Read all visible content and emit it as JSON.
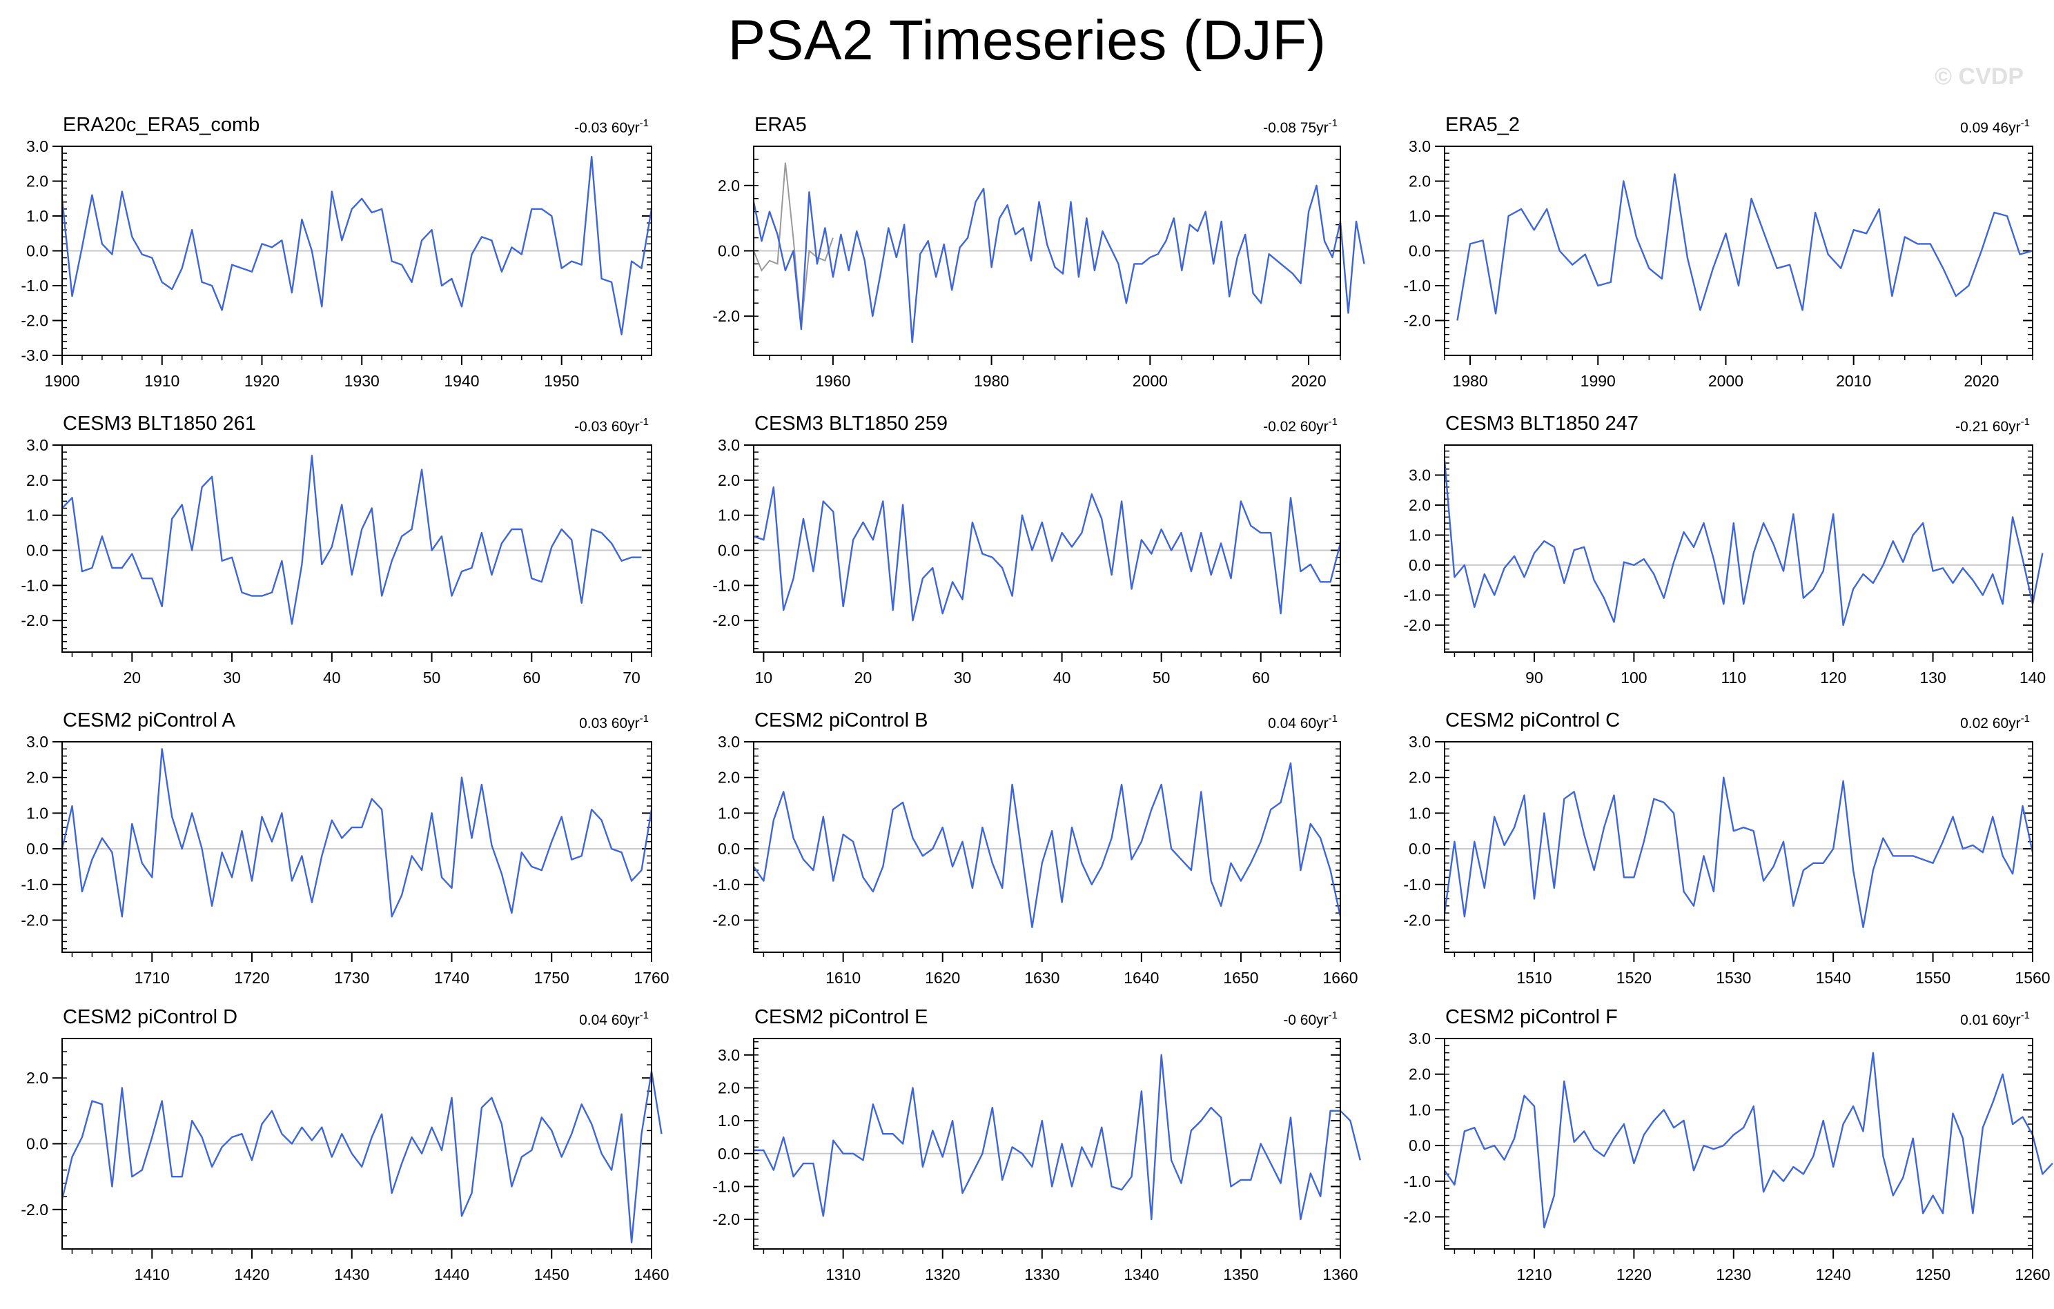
{
  "title": "PSA2 Timeseries (DJF)",
  "watermark": "© CVDP",
  "colors": {
    "series": "#3f66d9",
    "secondary": "#9a9a9a",
    "zero_line": "#c8c8c8",
    "frame": "#000000",
    "watermark": "#e1e1e1"
  },
  "chart_data": [
    {
      "type": "line",
      "title": "ERA20c_ERA5_comb",
      "trend": "-0.03",
      "trend_unit": "60yr",
      "xlim": [
        1900,
        1959
      ],
      "ylim": [
        -3.0,
        3.0
      ],
      "xticks": [
        1900,
        1910,
        1920,
        1930,
        1940,
        1950
      ],
      "yticks": [
        -3.0,
        -2.0,
        -1.0,
        0.0,
        1.0,
        2.0,
        3.0
      ],
      "ytick_labels": [
        "-3.0",
        "-2.0",
        "-1.0",
        "0.0",
        "1.0",
        "2.0",
        "3.0"
      ],
      "x_start": 1900,
      "values": [
        1.5,
        -1.3,
        0.1,
        1.6,
        0.2,
        -0.1,
        1.7,
        0.4,
        -0.1,
        -0.2,
        -0.9,
        -1.1,
        -0.5,
        0.6,
        -0.9,
        -1.0,
        -1.7,
        -0.4,
        -0.5,
        -0.6,
        0.2,
        0.1,
        0.3,
        -1.2,
        0.9,
        0.0,
        -1.6,
        1.7,
        0.3,
        1.2,
        1.5,
        1.1,
        1.2,
        -0.3,
        -0.4,
        -0.9,
        0.3,
        0.6,
        -1.0,
        -0.8,
        -1.6,
        -0.1,
        0.4,
        0.3,
        -0.6,
        0.1,
        -0.1,
        1.2,
        1.2,
        1.0,
        -0.5,
        -0.3,
        -0.4,
        2.7,
        -0.8,
        -0.9,
        -2.4,
        -0.3,
        -0.5,
        1.2
      ]
    },
    {
      "type": "line",
      "title": "ERA5",
      "trend": "-0.08",
      "trend_unit": "75yr",
      "xlim": [
        1950,
        2024
      ],
      "ylim": [
        -3.2,
        3.2
      ],
      "xticks": [
        1960,
        1980,
        2000,
        2020
      ],
      "yticks": [
        -2.0,
        0.0,
        2.0
      ],
      "ytick_labels": [
        "-2.0",
        "0.0",
        "2.0"
      ],
      "x_start": 1950,
      "values": [
        1.5,
        0.3,
        1.2,
        0.5,
        -0.6,
        0.0,
        -2.4,
        1.8,
        -0.4,
        0.7,
        -0.8,
        0.5,
        -0.6,
        0.6,
        -0.3,
        -2.0,
        -0.7,
        0.7,
        -0.2,
        0.8,
        -2.8,
        -0.1,
        0.3,
        -0.8,
        0.2,
        -1.2,
        0.1,
        0.4,
        1.5,
        1.9,
        -0.5,
        1.0,
        1.4,
        0.5,
        0.7,
        -0.3,
        1.5,
        0.2,
        -0.5,
        -0.7,
        1.5,
        -0.8,
        1.0,
        -0.6,
        0.6,
        0.1,
        -0.4,
        -1.6,
        -0.4,
        -0.4,
        -0.2,
        -0.1,
        0.3,
        1.0,
        -0.6,
        0.8,
        0.6,
        1.2,
        -0.4,
        0.9,
        -1.4,
        -0.2,
        0.5,
        -1.3,
        -1.6,
        -0.1,
        -0.3,
        -0.5,
        -0.7,
        -1.0,
        1.2,
        2.0,
        0.3,
        -0.2,
        0.9,
        -1.9,
        0.9,
        -0.4
      ],
      "secondary_x_start": 1950,
      "secondary_values": [
        0.0,
        -0.6,
        -0.3,
        -0.4,
        2.7,
        0.4,
        -2.3,
        0.0,
        -0.2,
        -0.3,
        0.4
      ]
    },
    {
      "type": "line",
      "title": "ERA5_2",
      "trend": "0.09",
      "trend_unit": "46yr",
      "xlim": [
        1978,
        2024
      ],
      "ylim": [
        -3.0,
        3.0
      ],
      "xticks": [
        1980,
        1990,
        2000,
        2010,
        2020
      ],
      "yticks": [
        -2.0,
        -1.0,
        0.0,
        1.0,
        2.0,
        3.0
      ],
      "ytick_labels": [
        "-2.0",
        "-1.0",
        "0.0",
        "1.0",
        "2.0",
        "3.0"
      ],
      "x_start": 1979,
      "values": [
        -2.0,
        0.2,
        0.3,
        -1.8,
        1.0,
        1.2,
        0.6,
        1.2,
        0.0,
        -0.4,
        -0.1,
        -1.0,
        -0.9,
        2.0,
        0.4,
        -0.5,
        -0.8,
        2.2,
        -0.2,
        -1.7,
        -0.5,
        0.5,
        -1.0,
        1.5,
        0.5,
        -0.5,
        -0.4,
        -1.7,
        1.1,
        -0.1,
        -0.5,
        0.6,
        0.5,
        1.2,
        -1.3,
        0.4,
        0.2,
        0.2,
        -0.5,
        -1.3,
        -1.0,
        0.0,
        1.1,
        1.0,
        -0.1,
        0.0
      ]
    },
    {
      "type": "line",
      "title": "CESM3 BLT1850 261",
      "trend": "-0.03",
      "trend_unit": "60yr",
      "xlim": [
        13,
        72
      ],
      "ylim": [
        -2.9,
        3.0
      ],
      "xticks": [
        20,
        30,
        40,
        50,
        60,
        70
      ],
      "yticks": [
        -2.0,
        -1.0,
        0.0,
        1.0,
        2.0,
        3.0
      ],
      "ytick_labels": [
        "-2.0",
        "-1.0",
        "0.0",
        "1.0",
        "2.0",
        "3.0"
      ],
      "x_start": 13,
      "values": [
        1.2,
        1.5,
        -0.6,
        -0.5,
        0.4,
        -0.5,
        -0.5,
        -0.1,
        -0.8,
        -0.8,
        -1.6,
        0.9,
        1.3,
        0.0,
        1.8,
        2.1,
        -0.3,
        -0.2,
        -1.2,
        -1.3,
        -1.3,
        -1.2,
        -0.3,
        -2.1,
        -0.4,
        2.7,
        -0.4,
        0.1,
        1.3,
        -0.7,
        0.6,
        1.2,
        -1.3,
        -0.3,
        0.4,
        0.6,
        2.3,
        0.0,
        0.4,
        -1.3,
        -0.6,
        -0.5,
        0.5,
        -0.7,
        0.2,
        0.6,
        0.6,
        -0.8,
        -0.9,
        0.1,
        0.6,
        0.3,
        -1.5,
        0.6,
        0.5,
        0.2,
        -0.3,
        -0.2,
        -0.2
      ]
    },
    {
      "type": "line",
      "title": "CESM3 BLT1850 259",
      "trend": "-0.02",
      "trend_unit": "60yr",
      "xlim": [
        9,
        68
      ],
      "ylim": [
        -2.9,
        3.0
      ],
      "xticks": [
        10,
        20,
        30,
        40,
        50,
        60
      ],
      "yticks": [
        -2.0,
        -1.0,
        0.0,
        1.0,
        2.0,
        3.0
      ],
      "ytick_labels": [
        "-2.0",
        "-1.0",
        "0.0",
        "1.0",
        "2.0",
        "3.0"
      ],
      "x_start": 9,
      "values": [
        0.4,
        0.3,
        1.8,
        -1.7,
        -0.8,
        0.9,
        -0.6,
        1.4,
        1.1,
        -1.6,
        0.3,
        0.8,
        0.3,
        1.4,
        -1.7,
        1.3,
        -2.0,
        -0.8,
        -0.5,
        -1.8,
        -0.9,
        -1.4,
        0.8,
        -0.1,
        -0.2,
        -0.5,
        -1.3,
        1.0,
        0.0,
        0.8,
        -0.3,
        0.5,
        0.1,
        0.5,
        1.6,
        0.9,
        -0.7,
        1.4,
        -1.1,
        0.3,
        -0.1,
        0.6,
        0.0,
        0.5,
        -0.6,
        0.5,
        -0.7,
        0.2,
        -0.8,
        1.4,
        0.7,
        0.5,
        0.5,
        -1.8,
        1.5,
        -0.6,
        -0.4,
        -0.9,
        -0.9,
        0.2
      ]
    },
    {
      "type": "line",
      "title": "CESM3 BLT1850 247",
      "trend": "-0.21",
      "trend_unit": "60yr",
      "xlim": [
        81,
        140
      ],
      "ylim": [
        -2.9,
        4.0
      ],
      "xticks": [
        90,
        100,
        110,
        120,
        130,
        140
      ],
      "yticks": [
        -2.0,
        -1.0,
        0.0,
        1.0,
        2.0,
        3.0
      ],
      "ytick_labels": [
        "-2.0",
        "-1.0",
        "0.0",
        "1.0",
        "2.0",
        "3.0"
      ],
      "x_start": 81,
      "values": [
        3.5,
        -0.4,
        0.0,
        -1.4,
        -0.3,
        -1.0,
        -0.1,
        0.3,
        -0.4,
        0.4,
        0.8,
        0.6,
        -0.6,
        0.5,
        0.6,
        -0.5,
        -1.1,
        -1.9,
        0.1,
        0.0,
        0.2,
        -0.3,
        -1.1,
        0.1,
        1.1,
        0.6,
        1.4,
        0.2,
        -1.3,
        1.4,
        -1.3,
        0.4,
        1.4,
        0.7,
        -0.2,
        1.7,
        -1.1,
        -0.8,
        -0.2,
        1.7,
        -2.0,
        -0.8,
        -0.3,
        -0.6,
        0.0,
        0.8,
        0.1,
        1.0,
        1.4,
        -0.2,
        -0.1,
        -0.6,
        -0.1,
        -0.5,
        -1.0,
        -0.3,
        -1.3,
        1.6,
        0.2,
        -1.3,
        0.4
      ]
    },
    {
      "type": "line",
      "title": "CESM2 piControl A",
      "trend": "0.03",
      "trend_unit": "60yr",
      "xlim": [
        1701,
        1760
      ],
      "ylim": [
        -2.9,
        3.0
      ],
      "xticks": [
        1710,
        1720,
        1730,
        1740,
        1750,
        1760
      ],
      "yticks": [
        -2.0,
        -1.0,
        0.0,
        1.0,
        2.0,
        3.0
      ],
      "ytick_labels": [
        "-2.0",
        "-1.0",
        "0.0",
        "1.0",
        "2.0",
        "3.0"
      ],
      "x_start": 1701,
      "values": [
        0.0,
        1.2,
        -1.2,
        -0.3,
        0.3,
        -0.1,
        -1.9,
        0.7,
        -0.4,
        -0.8,
        2.8,
        0.9,
        0.0,
        1.0,
        0.0,
        -1.6,
        -0.1,
        -0.8,
        0.5,
        -0.9,
        0.9,
        0.2,
        1.0,
        -0.9,
        -0.2,
        -1.5,
        -0.2,
        0.8,
        0.3,
        0.6,
        0.6,
        1.4,
        1.1,
        -1.9,
        -1.3,
        -0.2,
        -0.6,
        1.0,
        -0.8,
        -1.1,
        2.0,
        0.3,
        1.8,
        0.1,
        -0.7,
        -1.8,
        -0.1,
        -0.5,
        -0.6,
        0.2,
        0.9,
        -0.3,
        -0.2,
        1.1,
        0.8,
        0.0,
        -0.1,
        -0.9,
        -0.6,
        1.1
      ]
    },
    {
      "type": "line",
      "title": "CESM2 piControl B",
      "trend": "0.04",
      "trend_unit": "60yr",
      "xlim": [
        1601,
        1660
      ],
      "ylim": [
        -2.9,
        3.0
      ],
      "xticks": [
        1610,
        1620,
        1630,
        1640,
        1650,
        1660
      ],
      "yticks": [
        -2.0,
        -1.0,
        0.0,
        1.0,
        2.0,
        3.0
      ],
      "ytick_labels": [
        "-2.0",
        "-1.0",
        "0.0",
        "1.0",
        "2.0",
        "3.0"
      ],
      "x_start": 1601,
      "values": [
        -0.5,
        -0.9,
        0.8,
        1.6,
        0.3,
        -0.3,
        -0.6,
        0.9,
        -0.9,
        0.4,
        0.2,
        -0.8,
        -1.2,
        -0.5,
        1.1,
        1.3,
        0.3,
        -0.2,
        0.0,
        0.6,
        -0.5,
        0.2,
        -1.1,
        0.6,
        -0.4,
        -1.1,
        1.8,
        -0.2,
        -2.2,
        -0.4,
        0.5,
        -1.5,
        0.6,
        -0.4,
        -1.0,
        -0.5,
        0.3,
        1.8,
        -0.3,
        0.2,
        1.1,
        1.8,
        0.0,
        -0.3,
        -0.6,
        1.6,
        -0.9,
        -1.6,
        -0.4,
        -0.9,
        -0.4,
        0.2,
        1.1,
        1.3,
        2.4,
        -0.6,
        0.7,
        0.3,
        -0.6,
        -1.9
      ]
    },
    {
      "type": "line",
      "title": "CESM2 piControl C",
      "trend": "0.02",
      "trend_unit": "60yr",
      "xlim": [
        1501,
        1560
      ],
      "ylim": [
        -2.9,
        3.0
      ],
      "xticks": [
        1510,
        1520,
        1530,
        1540,
        1550,
        1560
      ],
      "yticks": [
        -2.0,
        -1.0,
        0.0,
        1.0,
        2.0,
        3.0
      ],
      "ytick_labels": [
        "-2.0",
        "-1.0",
        "0.0",
        "1.0",
        "2.0",
        "3.0"
      ],
      "x_start": 1501,
      "values": [
        -1.8,
        0.2,
        -1.9,
        0.2,
        -1.1,
        0.9,
        0.1,
        0.6,
        1.5,
        -1.4,
        1.0,
        -1.1,
        1.4,
        1.6,
        0.4,
        -0.6,
        0.6,
        1.5,
        -0.8,
        -0.8,
        0.2,
        1.4,
        1.3,
        1.0,
        -1.2,
        -1.6,
        -0.2,
        -1.2,
        2.0,
        0.5,
        0.6,
        0.5,
        -0.9,
        -0.5,
        0.2,
        -1.6,
        -0.6,
        -0.4,
        -0.4,
        0.0,
        1.9,
        -0.6,
        -2.2,
        -0.6,
        0.3,
        -0.2,
        -0.2,
        -0.2,
        -0.3,
        -0.4,
        0.2,
        0.9,
        0.0,
        0.1,
        -0.1,
        0.9,
        -0.2,
        -0.7,
        1.2,
        -0.1
      ]
    },
    {
      "type": "line",
      "title": "CESM2 piControl D",
      "trend": "0.04",
      "trend_unit": "60yr",
      "xlim": [
        1401,
        1460
      ],
      "ylim": [
        -3.2,
        3.2
      ],
      "xticks": [
        1410,
        1420,
        1430,
        1440,
        1450,
        1460
      ],
      "yticks": [
        -2.0,
        0.0,
        2.0
      ],
      "ytick_labels": [
        "-2.0",
        "0.0",
        "2.0"
      ],
      "x_start": 1401,
      "values": [
        -1.7,
        -0.4,
        0.2,
        1.3,
        1.2,
        -1.3,
        1.7,
        -1.0,
        -0.8,
        0.2,
        1.3,
        -1.0,
        -1.0,
        0.7,
        0.2,
        -0.7,
        -0.1,
        0.2,
        0.3,
        -0.5,
        0.6,
        1.0,
        0.3,
        0.0,
        0.5,
        0.1,
        0.5,
        -0.4,
        0.3,
        -0.3,
        -0.7,
        0.2,
        0.9,
        -1.5,
        -0.6,
        0.2,
        -0.3,
        0.5,
        -0.2,
        1.4,
        -2.2,
        -1.5,
        1.1,
        1.4,
        0.6,
        -1.3,
        -0.4,
        -0.2,
        0.8,
        0.4,
        -0.4,
        0.3,
        1.2,
        0.6,
        -0.3,
        -0.8,
        0.9,
        -3.0,
        0.3,
        2.2,
        0.3
      ]
    },
    {
      "type": "line",
      "title": "CESM2 piControl E",
      "trend": "-0",
      "trend_unit": "60yr",
      "xlim": [
        1301,
        1360
      ],
      "ylim": [
        -2.9,
        3.5
      ],
      "xticks": [
        1310,
        1320,
        1330,
        1340,
        1350,
        1360
      ],
      "yticks": [
        -2.0,
        -1.0,
        0.0,
        1.0,
        2.0,
        3.0
      ],
      "ytick_labels": [
        "-2.0",
        "-1.0",
        "0.0",
        "1.0",
        "2.0",
        "3.0"
      ],
      "x_start": 1301,
      "values": [
        0.1,
        0.1,
        -0.5,
        0.5,
        -0.7,
        -0.3,
        -0.3,
        -1.9,
        0.4,
        0.0,
        0.0,
        -0.2,
        1.5,
        0.6,
        0.6,
        0.3,
        2.0,
        -0.4,
        0.7,
        -0.1,
        1.0,
        -1.2,
        -0.6,
        0.0,
        1.4,
        -0.8,
        0.2,
        0.0,
        -0.4,
        1.0,
        -1.0,
        0.3,
        -1.0,
        0.2,
        -0.4,
        0.8,
        -1.0,
        -1.1,
        -0.7,
        1.9,
        -2.0,
        3.0,
        -0.2,
        -0.9,
        0.7,
        1.0,
        1.4,
        1.1,
        -1.0,
        -0.8,
        -0.8,
        0.3,
        -0.3,
        -0.9,
        1.1,
        -2.0,
        -0.6,
        -1.3,
        1.3,
        1.3,
        1.0,
        -0.2
      ]
    },
    {
      "type": "line",
      "title": "CESM2 piControl F",
      "trend": "0.01",
      "trend_unit": "60yr",
      "xlim": [
        1201,
        1260
      ],
      "ylim": [
        -2.9,
        3.0
      ],
      "xticks": [
        1210,
        1220,
        1230,
        1240,
        1250,
        1260
      ],
      "yticks": [
        -2.0,
        -1.0,
        0.0,
        1.0,
        2.0,
        3.0
      ],
      "ytick_labels": [
        "-2.0",
        "-1.0",
        "0.0",
        "1.0",
        "2.0",
        "3.0"
      ],
      "x_start": 1201,
      "values": [
        -0.7,
        -1.1,
        0.4,
        0.5,
        -0.1,
        0.0,
        -0.4,
        0.2,
        1.4,
        1.1,
        -2.3,
        -1.4,
        1.8,
        0.1,
        0.4,
        -0.1,
        -0.3,
        0.2,
        0.6,
        -0.5,
        0.3,
        0.7,
        1.0,
        0.5,
        0.7,
        -0.7,
        0.0,
        -0.1,
        0.0,
        0.3,
        0.5,
        1.1,
        -1.3,
        -0.7,
        -1.0,
        -0.6,
        -0.8,
        -0.3,
        0.7,
        -0.6,
        0.6,
        1.1,
        0.4,
        2.6,
        -0.3,
        -1.4,
        -0.9,
        0.2,
        -1.9,
        -1.4,
        -1.9,
        0.9,
        0.2,
        -1.9,
        0.5,
        1.2,
        2.0,
        0.6,
        0.8,
        0.3,
        -0.8,
        -0.5
      ]
    }
  ]
}
